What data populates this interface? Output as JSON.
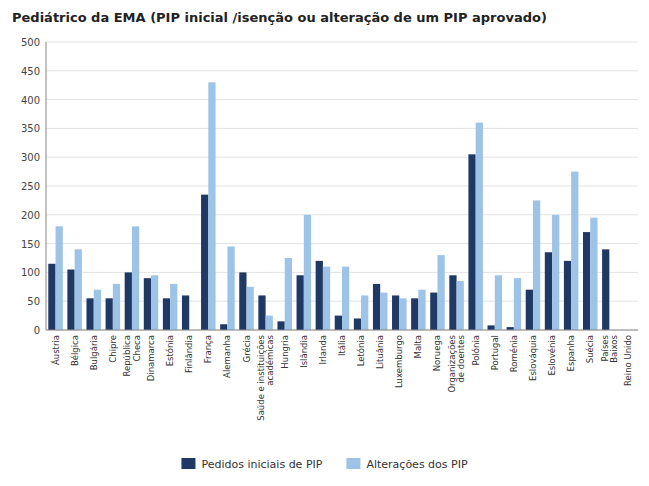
{
  "chart_data": {
    "type": "bar",
    "title": "Pediátrico da EMA (PIP inicial /isenção ou alteração de um PIP aprovado)",
    "categories": [
      "Áustria",
      "Bélgica",
      "Bulgária",
      "Chipre",
      "República\nCheca",
      "Dinamarca",
      "Estónia",
      "Finlândia",
      "França",
      "Alemanha",
      "Grécia",
      "Saúde e instituições\nacadémicas",
      "Hungria",
      "Islândia",
      "Irlanda",
      "Itália",
      "Letónia",
      "Lituânia",
      "Luxemburgo",
      "Malta",
      "Noruega",
      "Organizações\nde doentes",
      "Polónia",
      "Portugal",
      "Roménia",
      "Eslováquia",
      "Eslovénia",
      "Espanha",
      "Suécia",
      "Países\nBaixos",
      "Reino Unido"
    ],
    "series": [
      {
        "name": "Pedidos iniciais de PIP",
        "color": "#1F3864",
        "values": [
          115,
          105,
          55,
          55,
          100,
          90,
          55,
          60,
          235,
          10,
          100,
          60,
          15,
          95,
          120,
          25,
          20,
          80,
          60,
          55,
          65,
          95,
          305,
          8,
          5,
          70,
          135,
          120,
          170,
          140,
          0
        ]
      },
      {
        "name": "Alterações dos PIP",
        "color": "#9DC3E6",
        "values": [
          180,
          140,
          70,
          80,
          180,
          95,
          80,
          0,
          430,
          145,
          75,
          25,
          125,
          200,
          110,
          110,
          60,
          65,
          55,
          70,
          130,
          85,
          360,
          95,
          90,
          225,
          200,
          275,
          195,
          0,
          0
        ]
      }
    ],
    "ylim": [
      0,
      500
    ],
    "yticks": [
      0,
      50,
      100,
      150,
      200,
      250,
      300,
      350,
      400,
      450,
      500
    ],
    "grid": true,
    "legend": "bottom"
  }
}
